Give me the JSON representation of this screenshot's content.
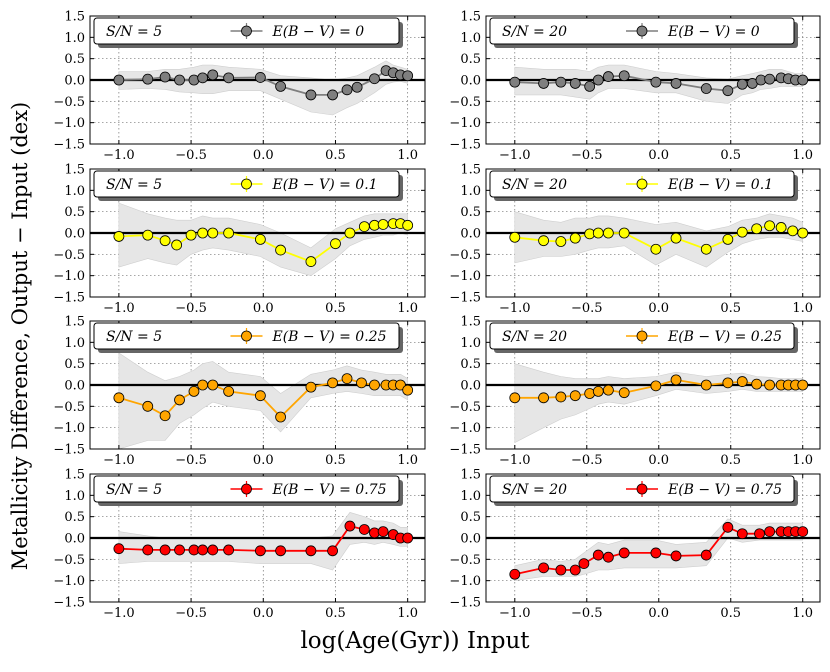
{
  "figure": {
    "ylabel": "Metallicity Difference, Output − Input (dex)",
    "xlabel": "log(Age(Gyr)) Input"
  },
  "axes": {
    "xticks": [
      -1.0,
      -0.5,
      0.0,
      0.5,
      1.0
    ],
    "xtick_labels": [
      "−1.0",
      "−0.5",
      "0.0",
      "0.5",
      "1.0"
    ],
    "yticks": [
      -1.5,
      -1.0,
      -0.5,
      0.0,
      0.5,
      1.0,
      1.5
    ],
    "ytick_labels": [
      "−1.5",
      "−1.0",
      "−0.5",
      "0.0",
      "0.5",
      "1.0",
      "1.5"
    ],
    "xlim": [
      -1.2,
      1.12
    ],
    "ylim": [
      -1.5,
      1.5
    ]
  },
  "colors": {
    "E0": "#7f7f7f",
    "E0.1": "#ffff00",
    "E0.25": "#ffa500",
    "E0.75": "#ff0000",
    "band": "#e6e6e6",
    "zero_line": "#000000"
  },
  "chart_data": [
    {
      "type": "line",
      "row": 0,
      "col": 0,
      "sn_label": "S/N = 5",
      "legend": "E(B − V) = 0",
      "color_key": "E0",
      "x": [
        -1.0,
        -0.8,
        -0.68,
        -0.58,
        -0.48,
        -0.42,
        -0.35,
        -0.24,
        -0.02,
        0.12,
        0.33,
        0.48,
        0.58,
        0.65,
        0.77,
        0.85,
        0.9,
        0.95,
        1.0
      ],
      "y": [
        0.0,
        0.02,
        0.07,
        0.0,
        0.0,
        0.05,
        0.12,
        0.05,
        0.06,
        -0.15,
        -0.35,
        -0.35,
        -0.23,
        -0.17,
        0.03,
        0.22,
        0.17,
        0.12,
        0.1
      ],
      "band_lo": [
        -0.22,
        -0.2,
        -0.22,
        -0.28,
        -0.3,
        -0.32,
        -0.32,
        -0.25,
        -0.25,
        -0.45,
        -0.75,
        -0.82,
        -0.65,
        -0.55,
        -0.3,
        -0.1,
        -0.05,
        -0.03,
        -0.08
      ],
      "band_hi": [
        0.2,
        0.2,
        0.25,
        0.25,
        0.3,
        0.35,
        0.35,
        0.3,
        0.25,
        0.1,
        0.05,
        0.0,
        0.05,
        0.1,
        0.3,
        0.45,
        0.35,
        0.3,
        0.25
      ]
    },
    {
      "type": "line",
      "row": 0,
      "col": 1,
      "sn_label": "S/N = 20",
      "legend": "E(B − V) = 0",
      "color_key": "E0",
      "x": [
        -1.0,
        -0.8,
        -0.68,
        -0.58,
        -0.48,
        -0.42,
        -0.35,
        -0.24,
        -0.02,
        0.12,
        0.33,
        0.48,
        0.58,
        0.65,
        0.71,
        0.77,
        0.85,
        0.9,
        0.95,
        1.0
      ],
      "y": [
        -0.05,
        -0.08,
        -0.05,
        -0.08,
        -0.15,
        0.0,
        0.08,
        0.1,
        -0.05,
        -0.08,
        -0.2,
        -0.25,
        -0.1,
        -0.08,
        0.0,
        0.02,
        0.05,
        0.03,
        0.0,
        0.0
      ],
      "band_lo": [
        -0.35,
        -0.35,
        -0.35,
        -0.4,
        -0.45,
        -0.3,
        -0.2,
        -0.2,
        -0.3,
        -0.3,
        -0.5,
        -0.55,
        -0.35,
        -0.3,
        -0.22,
        -0.2,
        -0.15,
        -0.15,
        -0.15,
        -0.15
      ],
      "band_hi": [
        0.3,
        0.25,
        0.25,
        0.25,
        0.2,
        0.3,
        0.35,
        0.35,
        0.2,
        0.15,
        0.05,
        0.02,
        0.1,
        0.15,
        0.2,
        0.25,
        0.25,
        0.2,
        0.15,
        0.15
      ]
    },
    {
      "type": "line",
      "row": 1,
      "col": 0,
      "sn_label": "S/N = 5",
      "legend": "E(B − V) = 0.1",
      "color_key": "E0.1",
      "x": [
        -1.0,
        -0.8,
        -0.68,
        -0.6,
        -0.5,
        -0.42,
        -0.35,
        -0.24,
        -0.02,
        0.12,
        0.33,
        0.5,
        0.6,
        0.7,
        0.77,
        0.83,
        0.9,
        0.95,
        1.0
      ],
      "y": [
        -0.08,
        -0.05,
        -0.18,
        -0.28,
        -0.05,
        0.0,
        0.0,
        0.0,
        -0.15,
        -0.4,
        -0.67,
        -0.25,
        0.0,
        0.15,
        0.18,
        0.2,
        0.22,
        0.22,
        0.18
      ],
      "band_lo": [
        -0.8,
        -0.6,
        -0.7,
        -0.75,
        -0.5,
        -0.4,
        -0.35,
        -0.4,
        -0.55,
        -0.8,
        -1.0,
        -0.6,
        -0.3,
        -0.15,
        -0.1,
        -0.05,
        -0.05,
        0.0,
        -0.05
      ],
      "band_hi": [
        0.7,
        0.45,
        0.35,
        0.3,
        0.3,
        0.4,
        0.35,
        0.35,
        0.2,
        0.0,
        -0.35,
        0.1,
        0.25,
        0.4,
        0.45,
        0.45,
        0.45,
        0.45,
        0.45
      ]
    },
    {
      "type": "line",
      "row": 1,
      "col": 1,
      "sn_label": "S/N = 20",
      "legend": "E(B − V) = 0.1",
      "color_key": "E0.1",
      "x": [
        -1.0,
        -0.8,
        -0.68,
        -0.58,
        -0.48,
        -0.42,
        -0.35,
        -0.24,
        -0.02,
        0.12,
        0.33,
        0.48,
        0.58,
        0.68,
        0.77,
        0.85,
        0.93,
        1.0
      ],
      "y": [
        -0.1,
        -0.18,
        -0.2,
        -0.12,
        -0.02,
        0.0,
        0.0,
        0.0,
        -0.38,
        -0.12,
        -0.38,
        -0.15,
        0.02,
        0.1,
        0.17,
        0.13,
        0.05,
        0.0
      ],
      "band_lo": [
        -0.7,
        -0.55,
        -0.55,
        -0.5,
        -0.4,
        -0.35,
        -0.35,
        -0.3,
        -0.75,
        -0.5,
        -0.8,
        -0.45,
        -0.25,
        -0.15,
        -0.1,
        -0.1,
        -0.15,
        -0.2
      ],
      "band_hi": [
        0.5,
        0.3,
        0.25,
        0.35,
        0.35,
        0.4,
        0.4,
        0.35,
        0.2,
        0.25,
        0.05,
        0.15,
        0.3,
        0.35,
        0.45,
        0.4,
        0.35,
        0.25
      ]
    },
    {
      "type": "line",
      "row": 2,
      "col": 0,
      "sn_label": "S/N = 5",
      "legend": "E(B − V) = 0.25",
      "color_key": "E0.25",
      "x": [
        -1.0,
        -0.8,
        -0.68,
        -0.58,
        -0.48,
        -0.42,
        -0.35,
        -0.24,
        -0.02,
        0.12,
        0.33,
        0.48,
        0.58,
        0.68,
        0.77,
        0.85,
        0.9,
        0.95,
        1.0
      ],
      "y": [
        -0.3,
        -0.5,
        -0.72,
        -0.35,
        -0.15,
        0.0,
        0.0,
        -0.15,
        -0.25,
        -0.75,
        -0.05,
        0.05,
        0.15,
        0.05,
        0.0,
        0.0,
        0.0,
        0.0,
        -0.12
      ],
      "band_lo": [
        -1.5,
        -1.3,
        -1.3,
        -0.9,
        -0.7,
        -0.55,
        -0.4,
        -0.5,
        -0.6,
        -1.1,
        -0.3,
        -0.2,
        -0.15,
        -0.2,
        -0.25,
        -0.25,
        -0.25,
        -0.25,
        -0.35
      ],
      "band_hi": [
        0.75,
        0.3,
        0.1,
        0.2,
        0.35,
        0.5,
        0.55,
        0.3,
        0.2,
        -0.2,
        0.25,
        0.35,
        0.45,
        0.35,
        0.3,
        0.25,
        0.25,
        0.25,
        0.15
      ]
    },
    {
      "type": "line",
      "row": 2,
      "col": 1,
      "sn_label": "S/N = 20",
      "legend": "E(B − V) = 0.25",
      "color_key": "E0.25",
      "x": [
        -1.0,
        -0.8,
        -0.68,
        -0.58,
        -0.48,
        -0.42,
        -0.35,
        -0.24,
        -0.02,
        0.12,
        0.33,
        0.48,
        0.58,
        0.68,
        0.77,
        0.85,
        0.9,
        0.95,
        1.0
      ],
      "y": [
        -0.3,
        -0.3,
        -0.28,
        -0.25,
        -0.2,
        -0.15,
        -0.12,
        -0.18,
        -0.02,
        0.12,
        0.0,
        0.05,
        0.08,
        0.02,
        0.0,
        0.0,
        0.0,
        0.0,
        0.0
      ],
      "band_lo": [
        -1.35,
        -1.0,
        -0.8,
        -0.7,
        -0.55,
        -0.45,
        -0.4,
        -0.45,
        -0.25,
        -0.1,
        -0.2,
        -0.15,
        -0.1,
        -0.15,
        -0.15,
        -0.15,
        -0.15,
        -0.15,
        -0.15
      ],
      "band_hi": [
        0.5,
        0.3,
        0.2,
        0.15,
        0.15,
        0.15,
        0.2,
        0.15,
        0.2,
        0.3,
        0.2,
        0.25,
        0.28,
        0.2,
        0.18,
        0.15,
        0.15,
        0.15,
        0.15
      ]
    },
    {
      "type": "line",
      "row": 3,
      "col": 0,
      "sn_label": "S/N = 5",
      "legend": "E(B − V) = 0.75",
      "color_key": "E0.75",
      "x": [
        -1.0,
        -0.8,
        -0.68,
        -0.58,
        -0.48,
        -0.42,
        -0.35,
        -0.24,
        -0.02,
        0.12,
        0.33,
        0.48,
        0.6,
        0.7,
        0.77,
        0.83,
        0.9,
        0.95,
        1.0
      ],
      "y": [
        -0.25,
        -0.28,
        -0.28,
        -0.28,
        -0.28,
        -0.28,
        -0.28,
        -0.28,
        -0.3,
        -0.3,
        -0.3,
        -0.3,
        0.28,
        0.2,
        0.12,
        0.15,
        0.08,
        0.0,
        0.0
      ],
      "band_lo": [
        -0.6,
        -0.55,
        -0.55,
        -0.55,
        -0.55,
        -0.55,
        -0.55,
        -0.55,
        -0.6,
        -0.6,
        -0.6,
        -0.75,
        -0.15,
        -0.1,
        -0.15,
        -0.1,
        -0.15,
        -0.2,
        -0.2
      ],
      "band_hi": [
        0.15,
        0.05,
        0.0,
        0.0,
        0.0,
        0.0,
        0.0,
        0.0,
        0.0,
        0.0,
        0.0,
        0.05,
        0.6,
        0.5,
        0.4,
        0.4,
        0.35,
        0.25,
        0.25
      ]
    },
    {
      "type": "line",
      "row": 3,
      "col": 1,
      "sn_label": "S/N = 20",
      "legend": "E(B − V) = 0.75",
      "color_key": "E0.75",
      "x": [
        -1.0,
        -0.8,
        -0.68,
        -0.58,
        -0.52,
        -0.42,
        -0.35,
        -0.24,
        -0.02,
        0.12,
        0.33,
        0.48,
        0.58,
        0.7,
        0.77,
        0.85,
        0.9,
        0.95,
        1.0
      ],
      "y": [
        -0.85,
        -0.7,
        -0.75,
        -0.75,
        -0.6,
        -0.4,
        -0.45,
        -0.35,
        -0.35,
        -0.42,
        -0.4,
        0.25,
        0.1,
        0.1,
        0.15,
        0.15,
        0.15,
        0.15,
        0.15
      ],
      "band_lo": [
        -1.0,
        -0.9,
        -0.9,
        -0.9,
        -0.85,
        -0.75,
        -0.75,
        -0.7,
        -0.7,
        -0.7,
        -0.65,
        0.0,
        -0.1,
        -0.05,
        -0.05,
        -0.05,
        -0.05,
        -0.05,
        -0.05
      ],
      "band_hi": [
        -0.65,
        -0.5,
        -0.55,
        -0.5,
        -0.35,
        -0.1,
        -0.15,
        -0.05,
        -0.05,
        -0.15,
        -0.1,
        0.45,
        0.3,
        0.3,
        0.35,
        0.35,
        0.35,
        0.35,
        0.35
      ]
    }
  ]
}
